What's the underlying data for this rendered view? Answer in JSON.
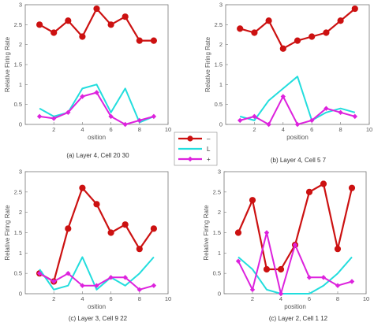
{
  "series_colors": {
    "dash": "#cc1111",
    "L": "#22dddd",
    "plus": "#dd22dd"
  },
  "chart_data": [
    {
      "type": "line",
      "caption": "(a) Layer 4, Cell 20 30",
      "xlabel": "osition",
      "ylabel": "Relative Firing Rate",
      "xlim": [
        0,
        10
      ],
      "ylim": [
        0,
        3
      ],
      "xticks": [
        "2",
        "4",
        "6",
        "8",
        "10"
      ],
      "yticks": [
        "0",
        "0.5",
        "1",
        "1.5",
        "2",
        "2.5",
        "3"
      ],
      "series": [
        {
          "name": "–",
          "x": [
            1,
            2,
            3,
            4,
            5,
            6,
            7,
            8,
            9
          ],
          "y": [
            2.5,
            2.3,
            2.6,
            2.2,
            2.9,
            2.5,
            2.7,
            2.1,
            2.1
          ]
        },
        {
          "name": "L",
          "x": [
            1,
            2,
            3,
            4,
            5,
            6,
            7,
            8,
            9
          ],
          "y": [
            0.4,
            0.2,
            0.3,
            0.9,
            1.0,
            0.3,
            0.9,
            0.05,
            0.2
          ]
        },
        {
          "name": "+",
          "x": [
            1,
            2,
            3,
            4,
            5,
            6,
            7,
            8,
            9
          ],
          "y": [
            0.2,
            0.15,
            0.3,
            0.7,
            0.8,
            0.2,
            0.0,
            0.1,
            0.2
          ]
        }
      ]
    },
    {
      "type": "line",
      "caption": "(b) Layer 4, Cell 5 7",
      "xlabel": "position",
      "ylabel": "Relative Firing Rate",
      "xlim": [
        0,
        10
      ],
      "ylim": [
        0,
        3
      ],
      "xticks": [
        "2",
        "4",
        "6",
        "8",
        "10"
      ],
      "yticks": [
        "0",
        "0.5",
        "1",
        "1.5",
        "2",
        "2.5",
        "3"
      ],
      "series": [
        {
          "name": "–",
          "x": [
            1,
            2,
            3,
            4,
            5,
            6,
            7,
            8,
            9
          ],
          "y": [
            2.4,
            2.3,
            2.6,
            1.9,
            2.1,
            2.2,
            2.3,
            2.6,
            2.9
          ]
        },
        {
          "name": "L",
          "x": [
            1,
            2,
            3,
            4,
            5,
            6,
            7,
            8,
            9
          ],
          "y": [
            0.2,
            0.1,
            0.6,
            0.9,
            1.2,
            0.1,
            0.3,
            0.4,
            0.3
          ]
        },
        {
          "name": "+",
          "x": [
            1,
            2,
            3,
            4,
            5,
            6,
            7,
            8,
            9
          ],
          "y": [
            0.1,
            0.2,
            0.0,
            0.7,
            0.0,
            0.1,
            0.4,
            0.3,
            0.2
          ]
        }
      ]
    },
    {
      "type": "line",
      "caption": "(c) Layer 3, Cell 9 22",
      "xlabel": "osition",
      "ylabel": "Relative Firing Rate",
      "xlim": [
        0,
        10
      ],
      "ylim": [
        0,
        3
      ],
      "xticks": [
        "2",
        "4",
        "6",
        "8",
        "10"
      ],
      "yticks": [
        "0",
        "0.5",
        "1",
        "1.5",
        "2",
        "2.5",
        "3"
      ],
      "series": [
        {
          "name": "–",
          "x": [
            1,
            2,
            3,
            4,
            5,
            6,
            7,
            8,
            9
          ],
          "y": [
            0.5,
            0.3,
            1.6,
            2.6,
            2.2,
            1.5,
            1.7,
            1.1,
            1.6
          ]
        },
        {
          "name": "L",
          "x": [
            1,
            2,
            3,
            4,
            5,
            6,
            7,
            8,
            9
          ],
          "y": [
            0.6,
            0.1,
            0.2,
            0.9,
            0.1,
            0.4,
            0.2,
            0.5,
            0.9
          ]
        },
        {
          "name": "+",
          "x": [
            1,
            2,
            3,
            4,
            5,
            6,
            7,
            8,
            9
          ],
          "y": [
            0.5,
            0.3,
            0.5,
            0.2,
            0.2,
            0.4,
            0.4,
            0.1,
            0.2
          ]
        }
      ]
    },
    {
      "type": "line",
      "caption": "(c) Layer 2, Cell 1 12",
      "xlabel": "position",
      "ylabel": "Relative Firing Rate",
      "xlim": [
        0,
        10
      ],
      "ylim": [
        0,
        3
      ],
      "xticks": [
        "2",
        "4",
        "6",
        "8",
        "10"
      ],
      "yticks": [
        "0",
        "0.5",
        "1",
        "1.5",
        "2",
        "2.5",
        "3"
      ],
      "series": [
        {
          "name": "–",
          "x": [
            1,
            2,
            3,
            4,
            5,
            6,
            7,
            8,
            9
          ],
          "y": [
            1.5,
            2.3,
            0.6,
            0.6,
            1.2,
            2.5,
            2.7,
            1.1,
            2.6
          ]
        },
        {
          "name": "L",
          "x": [
            1,
            2,
            3,
            4,
            5,
            6,
            7,
            8,
            9
          ],
          "y": [
            0.9,
            0.6,
            0.1,
            0.0,
            0.0,
            0.0,
            0.2,
            0.5,
            0.9
          ]
        },
        {
          "name": "+",
          "x": [
            1,
            2,
            3,
            4,
            5,
            6,
            7,
            8,
            9
          ],
          "y": [
            0.8,
            0.1,
            1.5,
            0.0,
            1.2,
            0.4,
            0.4,
            0.2,
            0.3
          ]
        }
      ]
    }
  ],
  "legend": {
    "items": [
      "–",
      "L",
      "+"
    ]
  }
}
